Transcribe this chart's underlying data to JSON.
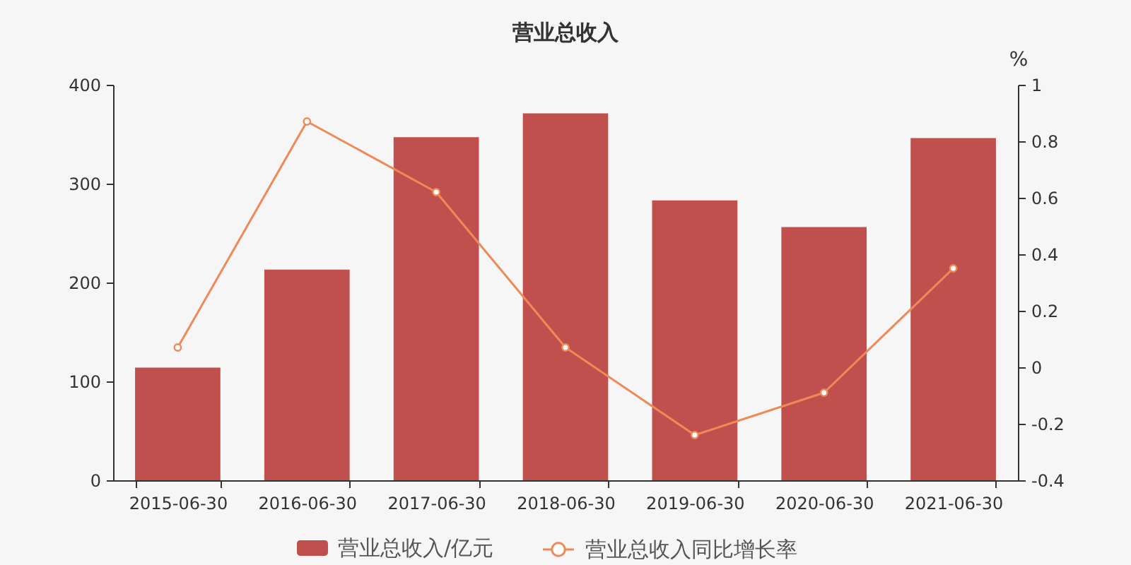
{
  "chart_data": {
    "type": "bar",
    "title": "营业总收入",
    "categories": [
      "2015-06-30",
      "2016-06-30",
      "2017-06-30",
      "2018-06-30",
      "2019-06-30",
      "2020-06-30",
      "2021-06-30"
    ],
    "series": [
      {
        "name": "营业总收入/亿元",
        "color": "#c0504d",
        "values": [
          114,
          213,
          347,
          371,
          283,
          256,
          346
        ]
      },
      {
        "name": "营业总收入同比增长率",
        "type": "line",
        "axis": "y2",
        "color": "#ee8a57",
        "values": [
          0.07,
          0.87,
          0.62,
          0.07,
          -0.24,
          -0.09,
          0.35
        ]
      }
    ],
    "ylim": [
      0,
      400
    ],
    "yticks": [
      0,
      100,
      200,
      300,
      400
    ],
    "y2lim": [
      -0.4,
      1
    ],
    "y2ticks": [
      -0.4,
      -0.2,
      0,
      0.2,
      0.4,
      0.6,
      0.8,
      1
    ],
    "y2label": "%",
    "grid": false,
    "legend": "bottom",
    "marker": "circle"
  }
}
